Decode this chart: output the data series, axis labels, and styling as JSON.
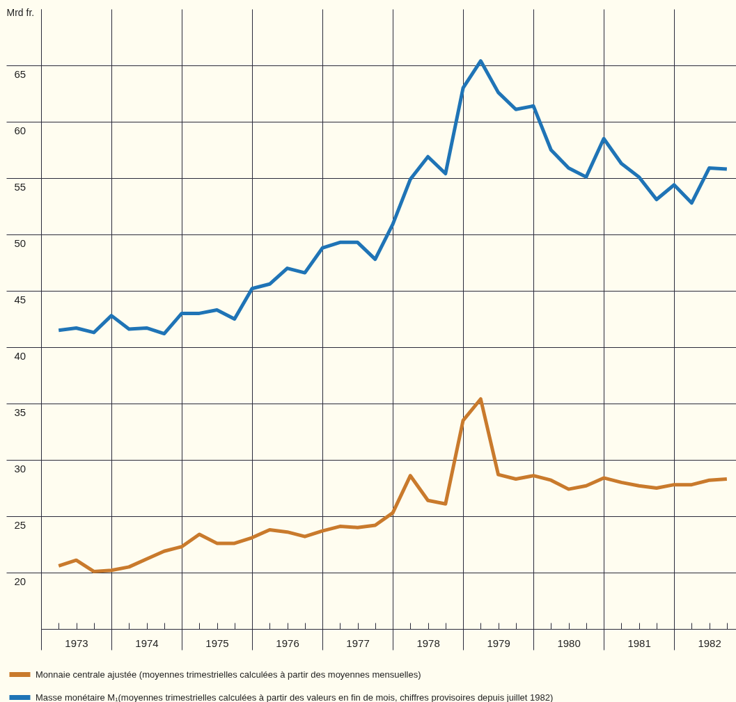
{
  "chart_data": {
    "type": "line",
    "ylabel": "Mrd fr.",
    "x": [
      1973.25,
      1973.5,
      1973.75,
      1974,
      1974.25,
      1974.5,
      1974.75,
      1975,
      1975.25,
      1975.5,
      1975.75,
      1976,
      1976.25,
      1976.5,
      1976.75,
      1977,
      1977.25,
      1977.5,
      1977.75,
      1978,
      1978.25,
      1978.5,
      1978.75,
      1979,
      1979.25,
      1979.5,
      1979.75,
      1980,
      1980.25,
      1980.5,
      1980.75,
      1981,
      1981.25,
      1981.5,
      1981.75,
      1982,
      1982.25,
      1982.5,
      1982.75
    ],
    "series": [
      {
        "name": "Monnaie centrale ajustée (moyennes trimestrielles calculées à partir des moyennes mensuelles)",
        "color": "#c97a2c",
        "values": [
          20.6,
          21.1,
          20.1,
          20.2,
          20.5,
          21.2,
          21.9,
          22.3,
          23.4,
          22.6,
          22.6,
          23.1,
          23.8,
          23.6,
          23.2,
          23.7,
          24.1,
          24.0,
          24.2,
          25.3,
          28.6,
          26.4,
          26.1,
          33.5,
          35.4,
          28.7,
          28.3,
          28.6,
          28.2,
          27.4,
          27.7,
          28.4,
          28.0,
          27.7,
          27.5,
          27.8,
          27.8,
          28.2,
          28.3
        ]
      },
      {
        "name": "Masse monétaire M₁(moyennes trimestrielles calculées à partir des valeurs en fin de mois, chiffres provisoires depuis juillet 1982)",
        "color": "#1f74b6",
        "values": [
          41.5,
          41.7,
          41.3,
          42.8,
          41.6,
          41.7,
          41.2,
          43.0,
          43.0,
          43.3,
          42.5,
          45.2,
          45.6,
          47.0,
          46.6,
          48.8,
          49.3,
          49.3,
          47.8,
          50.9,
          54.9,
          56.9,
          55.4,
          63.0,
          65.4,
          62.6,
          61.1,
          61.4,
          57.5,
          55.9,
          55.1,
          58.5,
          56.3,
          55.1,
          53.1,
          54.4,
          52.8,
          55.9,
          55.8
        ]
      }
    ],
    "xlim": [
      1973,
      1982.88
    ],
    "xticks": [
      {
        "value": 1973,
        "label": null
      },
      {
        "value": 1973.25,
        "label": null
      },
      {
        "value": 1973.5,
        "label": "1973"
      },
      {
        "value": 1973.75,
        "label": null
      },
      {
        "value": 1974,
        "label": null
      },
      {
        "value": 1974.25,
        "label": null
      },
      {
        "value": 1974.5,
        "label": "1974"
      },
      {
        "value": 1974.75,
        "label": null
      },
      {
        "value": 1975,
        "label": null
      },
      {
        "value": 1975.25,
        "label": null
      },
      {
        "value": 1975.5,
        "label": "1975"
      },
      {
        "value": 1975.75,
        "label": null
      },
      {
        "value": 1976,
        "label": null
      },
      {
        "value": 1976.25,
        "label": null
      },
      {
        "value": 1976.5,
        "label": "1976"
      },
      {
        "value": 1976.75,
        "label": null
      },
      {
        "value": 1977,
        "label": null
      },
      {
        "value": 1977.25,
        "label": null
      },
      {
        "value": 1977.5,
        "label": "1977"
      },
      {
        "value": 1977.75,
        "label": null
      },
      {
        "value": 1978,
        "label": null
      },
      {
        "value": 1978.25,
        "label": null
      },
      {
        "value": 1978.5,
        "label": "1978"
      },
      {
        "value": 1978.75,
        "label": null
      },
      {
        "value": 1979,
        "label": null
      },
      {
        "value": 1979.25,
        "label": null
      },
      {
        "value": 1979.5,
        "label": "1979"
      },
      {
        "value": 1979.75,
        "label": null
      },
      {
        "value": 1980,
        "label": null
      },
      {
        "value": 1980.25,
        "label": null
      },
      {
        "value": 1980.5,
        "label": "1980"
      },
      {
        "value": 1980.75,
        "label": null
      },
      {
        "value": 1981,
        "label": null
      },
      {
        "value": 1981.25,
        "label": null
      },
      {
        "value": 1981.5,
        "label": "1981"
      },
      {
        "value": 1981.75,
        "label": null
      },
      {
        "value": 1982,
        "label": null
      },
      {
        "value": 1982.25,
        "label": null
      },
      {
        "value": 1982.5,
        "label": "1982"
      },
      {
        "value": 1982.75,
        "label": null
      }
    ],
    "ylim": [
      15,
      70
    ],
    "yticks": [
      20,
      25,
      30,
      35,
      40,
      45,
      50,
      55,
      60,
      65
    ],
    "grid": true,
    "legend": "bottom",
    "marker": "none",
    "line_style": "solid"
  }
}
